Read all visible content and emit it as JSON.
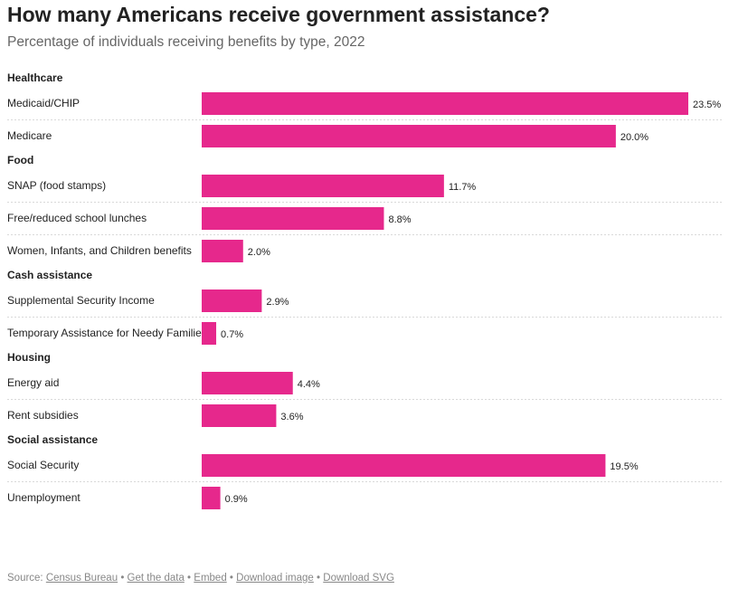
{
  "title": "How many Americans receive government assistance?",
  "subtitle": "Percentage of individuals receiving benefits by type, 2022",
  "colors": {
    "bar": "#e6288c",
    "text": "#222222",
    "muted": "#888888",
    "divider": "#d9d9d9"
  },
  "chart_data": {
    "type": "bar",
    "orientation": "horizontal",
    "unit": "%",
    "xlim": [
      0,
      23.5
    ],
    "grid": false,
    "groups": [
      {
        "name": "Healthcare",
        "items": [
          {
            "label": "Medicaid/CHIP",
            "value": 23.5,
            "value_label": "23.5%"
          },
          {
            "label": "Medicare",
            "value": 20.0,
            "value_label": "20.0%"
          }
        ]
      },
      {
        "name": "Food",
        "items": [
          {
            "label": "SNAP (food stamps)",
            "value": 11.7,
            "value_label": "11.7%"
          },
          {
            "label": "Free/reduced school lunches",
            "value": 8.8,
            "value_label": "8.8%"
          },
          {
            "label": "Women, Infants, and Children benefits",
            "value": 2.0,
            "value_label": "2.0%"
          }
        ]
      },
      {
        "name": "Cash assistance",
        "items": [
          {
            "label": "Supplemental Security Income",
            "value": 2.9,
            "value_label": "2.9%"
          },
          {
            "label": "Temporary Assistance for Needy Families",
            "value": 0.7,
            "value_label": "0.7%"
          }
        ]
      },
      {
        "name": "Housing",
        "items": [
          {
            "label": "Energy aid",
            "value": 4.4,
            "value_label": "4.4%"
          },
          {
            "label": "Rent subsidies",
            "value": 3.6,
            "value_label": "3.6%"
          }
        ]
      },
      {
        "name": "Social assistance",
        "items": [
          {
            "label": "Social Security",
            "value": 19.5,
            "value_label": "19.5%"
          },
          {
            "label": "Unemployment",
            "value": 0.9,
            "value_label": "0.9%"
          }
        ]
      }
    ]
  },
  "footer": {
    "source_prefix": "Source: ",
    "source_link": "Census Bureau",
    "get_data": "Get the data",
    "embed": "Embed",
    "download_image": "Download image",
    "download_svg": "Download SVG",
    "separator": "•"
  }
}
